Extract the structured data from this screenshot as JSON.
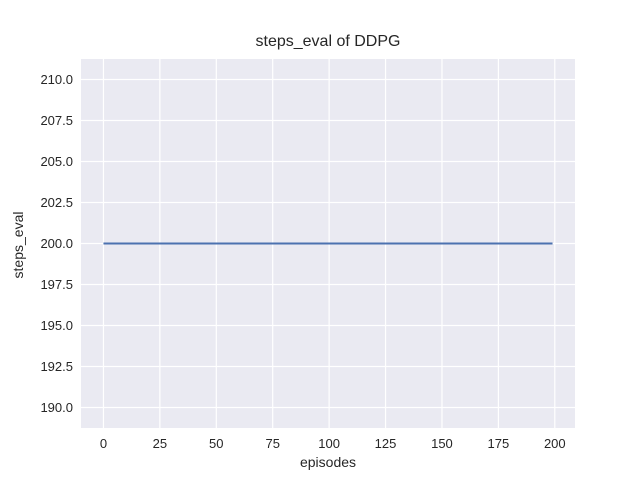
{
  "chart_data": {
    "type": "line",
    "title": "steps_eval of DDPG",
    "xlabel": "episodes",
    "ylabel": "steps_eval",
    "xlim": [
      -9.95,
      208.95
    ],
    "ylim": [
      188.75,
      211.25
    ],
    "x_ticks": [
      0,
      25,
      50,
      75,
      100,
      125,
      150,
      175,
      200
    ],
    "x_tick_labels": [
      "0",
      "25",
      "50",
      "75",
      "100",
      "125",
      "150",
      "175",
      "200"
    ],
    "y_ticks": [
      190.0,
      192.5,
      195.0,
      197.5,
      200.0,
      202.5,
      205.0,
      207.5,
      210.0
    ],
    "y_tick_labels": [
      "190.0",
      "192.5",
      "195.0",
      "197.5",
      "200.0",
      "202.5",
      "205.0",
      "207.5",
      "210.0"
    ],
    "grid": true,
    "legend": false,
    "style": {
      "axes_background": "#eaeaf2",
      "grid_color": "#ffffff",
      "grid_width": 1.2,
      "line_color": "#4c72b0",
      "line_width": 1.9,
      "text_color": "#262626"
    },
    "series": [
      {
        "name": "DDPG",
        "points": [
          [
            0,
            200.0
          ],
          [
            199,
            200.0
          ]
        ],
        "constant_value": 200.0,
        "x_start": 0,
        "x_end": 199
      }
    ]
  }
}
